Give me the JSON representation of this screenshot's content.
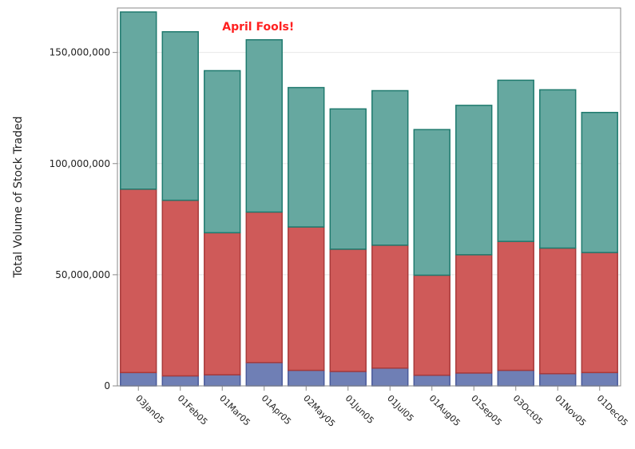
{
  "chart_data": {
    "type": "bar",
    "stacked": true,
    "title": "",
    "xlabel": "",
    "ylabel": "Total Volume of Stock Traded",
    "ylim": [
      0,
      170000000
    ],
    "yticks": [
      0,
      50000000,
      100000000,
      150000000
    ],
    "ytick_labels": [
      "0",
      "50,000,000",
      "100,000,000",
      "150,000,000"
    ],
    "grid": true,
    "categories": [
      "03Jan05",
      "01Feb05",
      "01Mar05",
      "01Apr05",
      "02May05",
      "01Jun05",
      "01Jul05",
      "01Aug05",
      "01Sep05",
      "03Oct05",
      "01Nov05",
      "01Dec05"
    ],
    "series": [
      {
        "color": "#6f7fb5",
        "stroke": "#4a5a9a",
        "values": [
          6000000,
          4500000,
          5000000,
          10500000,
          7000000,
          6500000,
          8000000,
          4800000,
          5800000,
          7000000,
          5500000,
          6000000
        ]
      },
      {
        "color": "#cf5a59",
        "stroke": "#a83a3a",
        "values": [
          82500000,
          79000000,
          63900000,
          67700000,
          64500000,
          55000000,
          55300000,
          45000000,
          53200000,
          58000000,
          56500000,
          54000000
        ]
      },
      {
        "color": "#66a8a0",
        "stroke": "#1f7a6e",
        "values": [
          79700000,
          75800000,
          72900000,
          77500000,
          62700000,
          63100000,
          69500000,
          65500000,
          67200000,
          72500000,
          71200000,
          63000000
        ]
      }
    ],
    "annotations": [
      {
        "text": "April Fools!",
        "category": "01Mar05",
        "y": 160000000,
        "color": "#ff2020"
      }
    ]
  }
}
